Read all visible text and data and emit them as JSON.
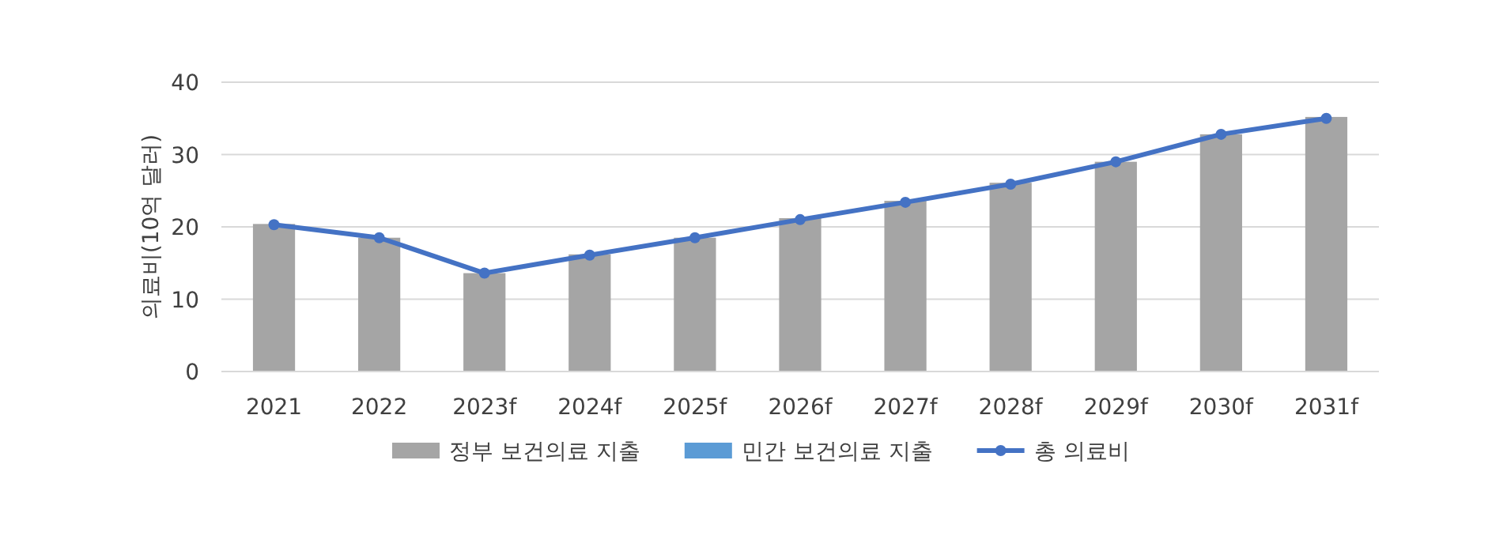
{
  "chart_data": {
    "type": "bar",
    "ylabel": "의료비(10억 달러)",
    "categories": [
      "2021",
      "2022",
      "2023f",
      "2024f",
      "2025f",
      "2026f",
      "2027f",
      "2028f",
      "2029f",
      "2030f",
      "2031f"
    ],
    "series": [
      {
        "name": "정부 보건의료 지출",
        "color": "#a5a5a5",
        "values": [
          20.4,
          18.5,
          13.6,
          16.2,
          18.5,
          21.2,
          23.6,
          26.1,
          29.0,
          32.8,
          35.2
        ]
      },
      {
        "name": "민간 보건의료 지출",
        "color": "#5b9bd5",
        "values": [
          0,
          0,
          0,
          0,
          0,
          0,
          0,
          0,
          0,
          0,
          0
        ]
      },
      {
        "name": "총 의료비",
        "type": "line",
        "color": "#4472c4",
        "marker": "circle",
        "values": [
          20.3,
          18.5,
          13.6,
          16.1,
          18.5,
          21.0,
          23.4,
          25.9,
          29.0,
          32.8,
          35.0
        ]
      }
    ],
    "ylim": [
      0,
      40
    ],
    "yticks": [
      0,
      10,
      20,
      30,
      40
    ],
    "grid": "y",
    "legend": "bottom"
  }
}
